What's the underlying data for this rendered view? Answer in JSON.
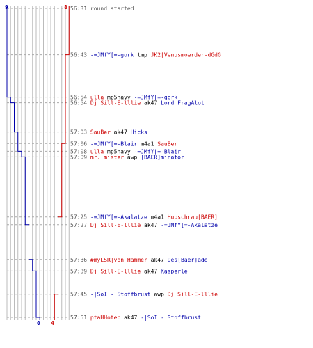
{
  "score": {
    "blue_start": "9",
    "red_start": "8",
    "blue_end": "0",
    "red_end": "4"
  },
  "colors": {
    "blue": "#0000aa",
    "red": "#cc0000",
    "neutral": "#000000",
    "time": "#555555",
    "grid": "#bbbbbb",
    "grid_dark": "#888888",
    "dash": "#aaaaaa"
  },
  "events": [
    {
      "time": "56:31",
      "type": "status",
      "text": "round started"
    },
    {
      "time": "56:43",
      "type": "kill",
      "killer": "-=JMfY[=-gork",
      "killer_team": "blue",
      "weapon": "tmp",
      "victim": "JK2[Venusmoerder-dGdG",
      "victim_team": "red"
    },
    {
      "time": "56:54",
      "type": "kill",
      "killer": "ulla",
      "killer_team": "red",
      "weapon": "mp5navy",
      "victim": "-=JMfY[=-gork",
      "victim_team": "blue"
    },
    {
      "time": "56:54",
      "type": "kill",
      "killer": "Dj Sill-E-lllie",
      "killer_team": "red",
      "weapon": "ak47",
      "victim": "Lord FragAlot",
      "victim_team": "blue"
    },
    {
      "time": "57:03",
      "type": "kill",
      "killer": "SauBer",
      "killer_team": "red",
      "weapon": "ak47",
      "victim": "Hicks",
      "victim_team": "blue"
    },
    {
      "time": "57:06",
      "type": "kill",
      "killer": "-=JMfY[=-Blair",
      "killer_team": "blue",
      "weapon": "m4a1",
      "victim": "SauBer",
      "victim_team": "red"
    },
    {
      "time": "57:08",
      "type": "kill",
      "killer": "ulla",
      "killer_team": "red",
      "weapon": "mp5navy",
      "victim": "-=JMfY[=-Blair",
      "victim_team": "blue"
    },
    {
      "time": "57:09",
      "type": "kill",
      "killer": "mr. mister",
      "killer_team": "red",
      "weapon": "awp",
      "victim": "[BAER]minator",
      "victim_team": "blue"
    },
    {
      "time": "57:25",
      "type": "kill",
      "killer": "-=JMfY[=-Akalatze",
      "killer_team": "blue",
      "weapon": "m4a1",
      "victim": "Hubschrau[BAER]",
      "victim_team": "red"
    },
    {
      "time": "57:27",
      "type": "kill",
      "killer": "Dj Sill-E-lllie",
      "killer_team": "red",
      "weapon": "ak47",
      "victim": "-=JMfY[=-Akalatze",
      "victim_team": "blue"
    },
    {
      "time": "57:36",
      "type": "kill",
      "killer": "#myLSR|von Hammer",
      "killer_team": "red",
      "weapon": "ak47",
      "victim": "Des[Baer]ado",
      "victim_team": "blue"
    },
    {
      "time": "57:39",
      "type": "kill",
      "killer": "Dj Sill-E-lllie",
      "killer_team": "red",
      "weapon": "ak47",
      "victim": "Kasperle",
      "victim_team": "blue"
    },
    {
      "time": "57:45",
      "type": "kill",
      "killer": "-|SoI|- Stoffbrust",
      "killer_team": "blue",
      "weapon": "awp",
      "victim": "Dj Sill-E-lllie",
      "victim_team": "red"
    },
    {
      "time": "57:51",
      "type": "kill",
      "killer": "ptaHHotep",
      "killer_team": "red",
      "weapon": "ak47",
      "victim": "-|SoI|- Stoffbrust",
      "victim_team": "blue"
    }
  ]
}
